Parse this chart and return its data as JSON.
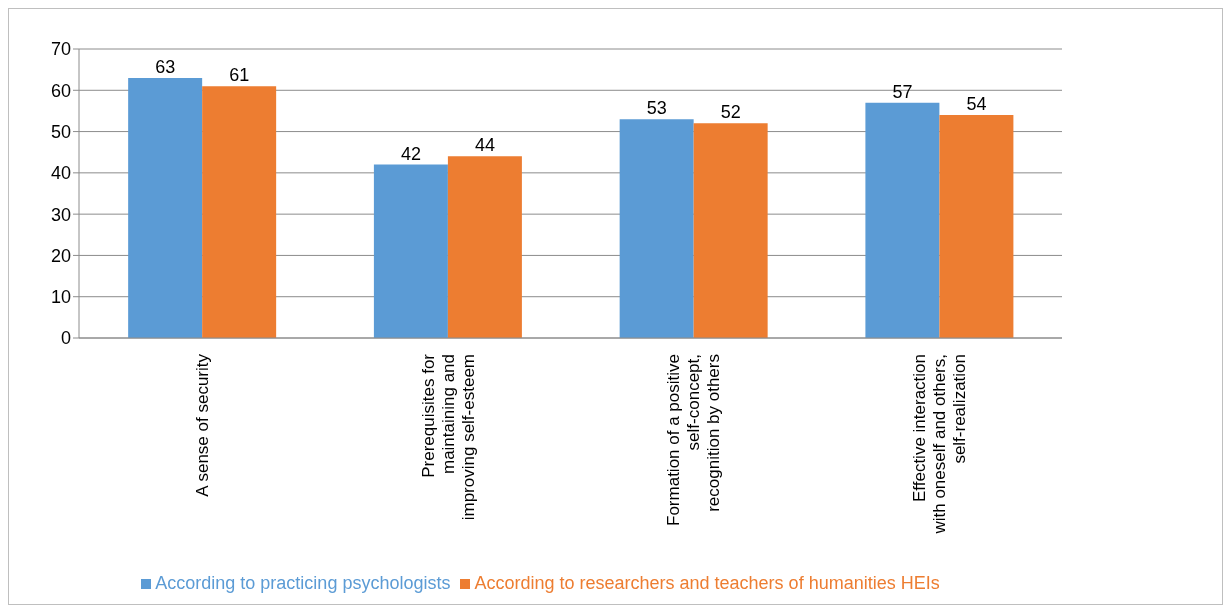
{
  "chart_data": {
    "type": "bar",
    "categories": [
      "A sense of security",
      "Prerequisites for maintaining and improving self-esteem",
      "Formation of a positive self-concept, recognition by others",
      "Effective interaction with oneself and others, self-realization"
    ],
    "series": [
      {
        "name": "According to practicing psychologists",
        "color": "#5b9bd5",
        "values": [
          63,
          42,
          53,
          57
        ]
      },
      {
        "name": "According to researchers and teachers of humanities HEIs",
        "color": "#ed7d31",
        "values": [
          61,
          44,
          52,
          54
        ]
      }
    ],
    "ylim": [
      0,
      70
    ],
    "yticks": [
      0,
      10,
      20,
      30,
      40,
      50,
      60,
      70
    ],
    "grid": "y",
    "legend": "bottom",
    "data_labels": true
  }
}
